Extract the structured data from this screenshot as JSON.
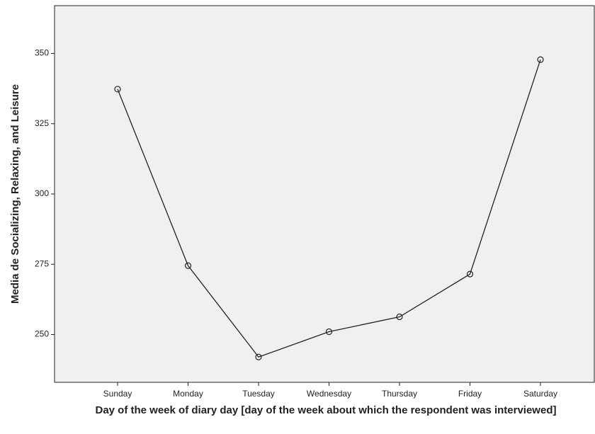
{
  "chart_data": {
    "type": "line",
    "x_label": "Day of the week of diary day [day of the week about which the respondent was interviewed]",
    "y_label": "Media de Socializing, Relaxing, and Leisure",
    "categories": [
      "Sunday",
      "Monday",
      "Tuesday",
      "Wednesday",
      "Thursday",
      "Friday",
      "Saturday"
    ],
    "values": [
      337.3,
      274.5,
      242,
      251,
      256.3,
      271.5,
      347.8
    ],
    "color": "#222222",
    "ylim": [
      233,
      367
    ],
    "yticks": [
      250,
      275,
      300,
      325,
      350
    ],
    "grid": false
  }
}
